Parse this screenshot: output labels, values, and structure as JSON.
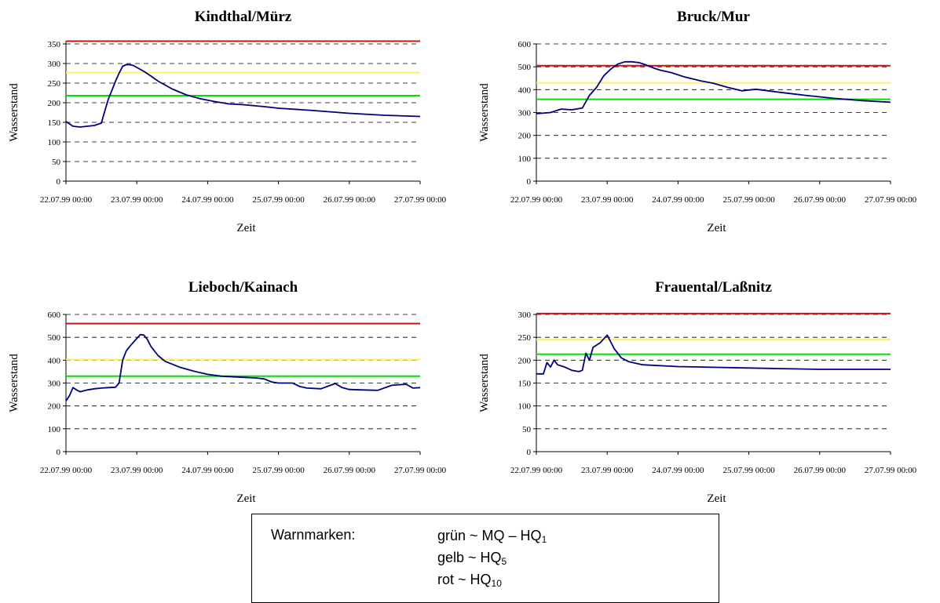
{
  "legend": {
    "title": "Warnmarken:",
    "items": [
      {
        "text": "grün ~ MQ – HQ",
        "sub": "1"
      },
      {
        "text": "gelb ~ HQ",
        "sub": "5"
      },
      {
        "text": "rot ~ HQ",
        "sub": "10"
      }
    ]
  },
  "chart_data": [
    {
      "type": "line",
      "title": "Kindthal/Mürz",
      "xlabel": "Zeit",
      "ylabel": "Wasserstand",
      "xticks": [
        "22.07.99 00:00",
        "23.07.99 00:00",
        "24.07.99 00:00",
        "25.07.99 00:00",
        "26.07.99 00:00",
        "27.07.99 00:00"
      ],
      "xlim": [
        0,
        5
      ],
      "ylim": [
        0,
        350
      ],
      "yticks": [
        0,
        50,
        100,
        150,
        200,
        250,
        300,
        350
      ],
      "thresholds": {
        "gruen": 218,
        "gelb": 277,
        "rot": 357
      },
      "colors": {
        "gruen": "#00e000",
        "gelb": "#ffee66",
        "rot": "#cc1111",
        "line": "#000080"
      },
      "series": [
        {
          "x": [
            0,
            0.1,
            0.2,
            0.3,
            0.4,
            0.5,
            0.55,
            0.6,
            0.65,
            0.7,
            0.75,
            0.8,
            0.85,
            0.9,
            0.95,
            1.0,
            1.1,
            1.2,
            1.3,
            1.5,
            1.7,
            1.9,
            2.1,
            2.3,
            2.5,
            2.8,
            3.0,
            3.5,
            4.0,
            4.5,
            5.0
          ],
          "y": [
            152,
            140,
            138,
            140,
            142,
            148,
            180,
            210,
            232,
            255,
            275,
            293,
            297,
            297,
            295,
            290,
            280,
            268,
            255,
            235,
            220,
            210,
            203,
            197,
            195,
            190,
            186,
            180,
            173,
            168,
            165
          ]
        }
      ]
    },
    {
      "type": "line",
      "title": "Bruck/Mur",
      "xlabel": "Zeit",
      "ylabel": "Wasserstand",
      "xticks": [
        "22.07.99 00:00",
        "23.07.99 00:00",
        "24.07.99 00:00",
        "25.07.99 00:00",
        "26.07.99 00:00",
        "27.07.99 00:00"
      ],
      "xlim": [
        0,
        5
      ],
      "ylim": [
        0,
        600
      ],
      "yticks": [
        0,
        100,
        200,
        300,
        400,
        500,
        600
      ],
      "thresholds": {
        "gruen": 358,
        "gelb": 430,
        "rot": 505
      },
      "colors": {
        "gruen": "#00e000",
        "gelb": "#ffee66",
        "rot": "#cc1111",
        "line": "#000080"
      },
      "series": [
        {
          "x": [
            0,
            0.2,
            0.35,
            0.5,
            0.65,
            0.75,
            0.85,
            0.95,
            1.05,
            1.15,
            1.25,
            1.35,
            1.45,
            1.55,
            1.65,
            1.75,
            1.9,
            2.1,
            2.3,
            2.5,
            2.7,
            2.9,
            3.1,
            3.4,
            3.8,
            4.2,
            4.6,
            5.0
          ],
          "y": [
            295,
            300,
            315,
            312,
            320,
            375,
            410,
            460,
            490,
            512,
            522,
            522,
            518,
            508,
            495,
            485,
            475,
            455,
            440,
            428,
            410,
            395,
            402,
            390,
            375,
            362,
            352,
            345
          ]
        }
      ]
    },
    {
      "type": "line",
      "title": "Lieboch/Kainach",
      "xlabel": "Zeit",
      "ylabel": "Wasserstand",
      "xticks": [
        "22.07.99 00:00",
        "23.07.99 00:00",
        "24.07.99 00:00",
        "25.07.99 00:00",
        "26.07.99 00:00",
        "27.07.99 00:00"
      ],
      "xlim": [
        0,
        5
      ],
      "ylim": [
        0,
        600
      ],
      "yticks": [
        0,
        100,
        200,
        300,
        400,
        500,
        600
      ],
      "thresholds": {
        "gruen": 330,
        "gelb": 403,
        "rot": 560
      },
      "colors": {
        "gruen": "#00e000",
        "gelb": "#ffee66",
        "rot": "#cc1111",
        "line": "#000080"
      },
      "series": [
        {
          "x": [
            0,
            0.05,
            0.1,
            0.15,
            0.2,
            0.3,
            0.4,
            0.5,
            0.6,
            0.7,
            0.75,
            0.8,
            0.85,
            0.9,
            1.0,
            1.05,
            1.1,
            1.15,
            1.2,
            1.3,
            1.4,
            1.6,
            1.8,
            2.0,
            2.2,
            2.5,
            2.7,
            2.8,
            2.9,
            3.0,
            3.2,
            3.3,
            3.4,
            3.6,
            3.8,
            3.9,
            4.0,
            4.2,
            4.4,
            4.6,
            4.8,
            4.9,
            5.0
          ],
          "y": [
            222,
            245,
            280,
            270,
            262,
            270,
            275,
            278,
            280,
            282,
            300,
            400,
            440,
            460,
            495,
            512,
            510,
            490,
            460,
            420,
            395,
            370,
            352,
            338,
            330,
            325,
            322,
            318,
            305,
            300,
            300,
            285,
            278,
            275,
            298,
            280,
            272,
            270,
            268,
            290,
            295,
            278,
            280
          ]
        }
      ]
    },
    {
      "type": "line",
      "title": "Frauental/Laßnitz",
      "xlabel": "Zeit",
      "ylabel": "Wasserstand",
      "xticks": [
        "22.07.99 00:00",
        "23.07.99 00:00",
        "24.07.99 00:00",
        "25.07.99 00:00",
        "26.07.99 00:00",
        "27.07.99 00:00"
      ],
      "xlim": [
        0,
        5
      ],
      "ylim": [
        0,
        300
      ],
      "yticks": [
        0,
        50,
        100,
        150,
        200,
        250,
        300
      ],
      "thresholds": {
        "gruen": 213,
        "gelb": 245,
        "rot": 302
      },
      "colors": {
        "gruen": "#00e000",
        "gelb": "#ffee66",
        "rot": "#cc1111",
        "line": "#000080"
      },
      "series": [
        {
          "x": [
            0,
            0.1,
            0.15,
            0.2,
            0.25,
            0.3,
            0.4,
            0.5,
            0.6,
            0.65,
            0.7,
            0.75,
            0.8,
            0.9,
            1.0,
            1.05,
            1.1,
            1.2,
            1.3,
            1.5,
            2.0,
            3.0,
            4.0,
            5.0
          ],
          "y": [
            170,
            170,
            195,
            185,
            200,
            190,
            185,
            178,
            175,
            178,
            215,
            200,
            228,
            238,
            255,
            240,
            225,
            205,
            197,
            190,
            186,
            183,
            180,
            180
          ]
        }
      ]
    }
  ]
}
